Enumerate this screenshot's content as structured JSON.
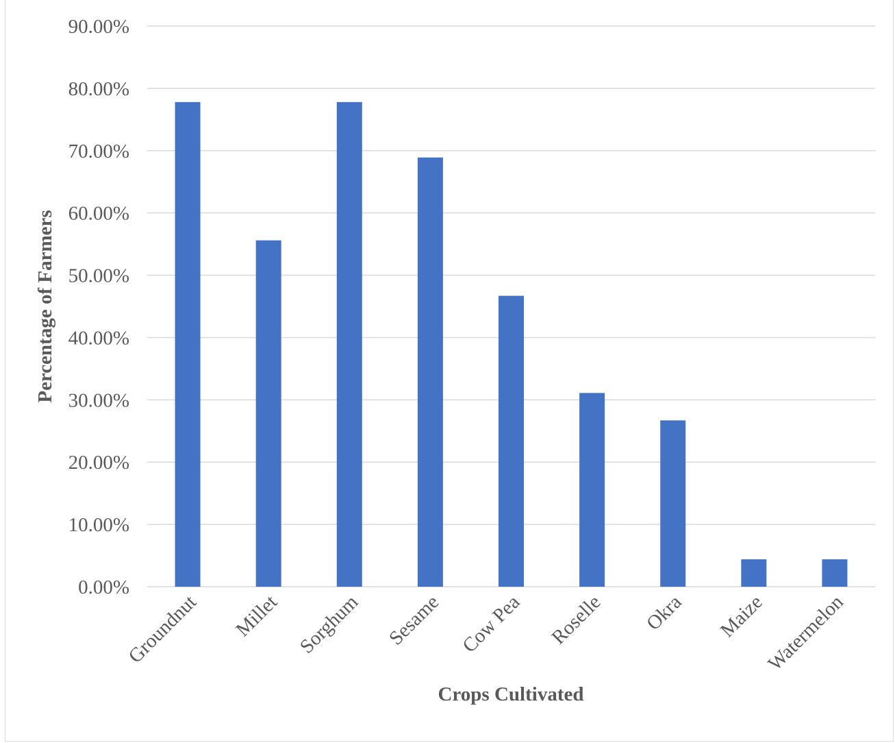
{
  "colors": {
    "bar": "#4472C4",
    "grid": "#d9d9d9",
    "text": "#595959"
  },
  "chart_data": {
    "type": "bar",
    "title": "",
    "xlabel": "Crops Cultivated",
    "ylabel": "Percentage of Farmers",
    "categories": [
      "Groundnut",
      "Millet",
      "Sorghum",
      "Sesame",
      "Cow Pea",
      "Roselle",
      "Okra",
      "Maize",
      "Watermelon"
    ],
    "values": [
      77.8,
      55.6,
      77.8,
      68.9,
      46.7,
      31.1,
      26.7,
      4.4,
      4.4
    ],
    "ylim": [
      0,
      90
    ],
    "yticks": [
      "0.00%",
      "10.00%",
      "20.00%",
      "30.00%",
      "40.00%",
      "50.00%",
      "60.00%",
      "70.00%",
      "80.00%",
      "90.00%"
    ],
    "grid": true,
    "legend": "none"
  }
}
